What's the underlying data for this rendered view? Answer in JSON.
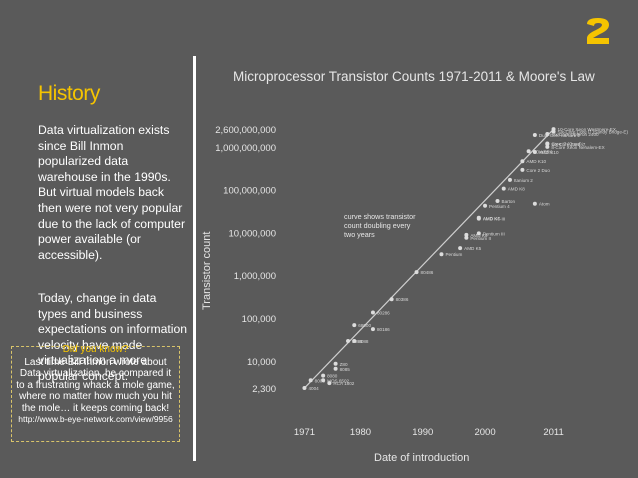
{
  "slide": {
    "title": "History",
    "paragraph_1": "Data virtualization exists since Bill Inmon popularized data warehouse in the 1990s. But virtual models back then were not very popular due to the lack of  computer power available (or accessible).",
    "paragraph_2": "Today, change in data types and business expectations on information velocity have made virtualization a more popular concept.",
    "callout": {
      "heading": "Did you know?",
      "body": "Last time Bill Inmon wrote about Data virtualization, he compared it to a frustrating whack a mole game, where no matter how much you hit the mole… it keeps coming back!",
      "link": "http://www.b-eye-network.com/view/9956"
    },
    "colors": {
      "background": "#5a5a5a",
      "accent": "#f5c400",
      "text": "#ffffff"
    },
    "logo_icon": "brand-logo-icon"
  },
  "chart_data": {
    "type": "scatter",
    "title": "Microprocessor Transistor Counts 1971-2011 & Moore's Law",
    "xlabel": "Date of introduction",
    "ylabel": "Transistor count",
    "xlim": [
      1969,
      2013
    ],
    "ylim": [
      1500,
      5000000000
    ],
    "y_scale": "log",
    "x_ticks": [
      1971,
      1980,
      1990,
      2000,
      2011
    ],
    "y_ticks": [
      {
        "value": 2300,
        "label": "2,300"
      },
      {
        "value": 10000,
        "label": "10,000"
      },
      {
        "value": 100000,
        "label": "100,000"
      },
      {
        "value": 1000000,
        "label": "1,000,000"
      },
      {
        "value": 10000000,
        "label": "10,000,000"
      },
      {
        "value": 100000000,
        "label": "100,000,000"
      },
      {
        "value": 1000000000,
        "label": "1,000,000,000"
      },
      {
        "value": 2600000000,
        "label": "2,600,000,000"
      }
    ],
    "annotation": "curve shows transistor count doubling every two years",
    "trend_line": {
      "x": [
        1971,
        2011
      ],
      "y": [
        2300,
        2600000000
      ]
    },
    "points": [
      {
        "x": 1971,
        "y": 2300,
        "label": "4004"
      },
      {
        "x": 1972,
        "y": 3500,
        "label": "8008"
      },
      {
        "x": 1974,
        "y": 4500,
        "label": "8080"
      },
      {
        "x": 1974,
        "y": 3500,
        "label": "MOS 6502"
      },
      {
        "x": 1975,
        "y": 3000,
        "label": "RCA 1802"
      },
      {
        "x": 1976,
        "y": 8500,
        "label": "Z80"
      },
      {
        "x": 1976,
        "y": 6500,
        "label": "8085"
      },
      {
        "x": 1978,
        "y": 29000,
        "label": "8086"
      },
      {
        "x": 1979,
        "y": 68000,
        "label": "68000"
      },
      {
        "x": 1979,
        "y": 29000,
        "label": "8088"
      },
      {
        "x": 1982,
        "y": 134000,
        "label": "80286"
      },
      {
        "x": 1982,
        "y": 55000,
        "label": "80186"
      },
      {
        "x": 1985,
        "y": 275000,
        "label": "80386"
      },
      {
        "x": 1989,
        "y": 1180000,
        "label": "80486"
      },
      {
        "x": 1993,
        "y": 3100000,
        "label": "Pentium"
      },
      {
        "x": 1996,
        "y": 4300000,
        "label": "AMD K5"
      },
      {
        "x": 1997,
        "y": 7500000,
        "label": "Pentium II"
      },
      {
        "x": 1997,
        "y": 8800000,
        "label": "AMD K6"
      },
      {
        "x": 1999,
        "y": 9500000,
        "label": "Pentium III"
      },
      {
        "x": 1999,
        "y": 21000000,
        "label": "AMD K6-III"
      },
      {
        "x": 1999,
        "y": 22000000,
        "label": "AMD K7"
      },
      {
        "x": 2000,
        "y": 42000000,
        "label": "Pentium 4"
      },
      {
        "x": 2002,
        "y": 54300000,
        "label": "Barton"
      },
      {
        "x": 2003,
        "y": 105900000,
        "label": "AMD K8"
      },
      {
        "x": 2004,
        "y": 169000000,
        "label": "Itanium 2"
      },
      {
        "x": 2006,
        "y": 291000000,
        "label": "Core 2 Duo"
      },
      {
        "x": 2008,
        "y": 47000000,
        "label": "Atom"
      },
      {
        "x": 2006,
        "y": 463000000,
        "label": "AMD K10"
      },
      {
        "x": 2007,
        "y": 789000000,
        "label": "POWER6"
      },
      {
        "x": 2008,
        "y": 758000000,
        "label": "AMD K10"
      },
      {
        "x": 2008,
        "y": 1900000000,
        "label": "Dual-Core Itanium 2"
      },
      {
        "x": 2010,
        "y": 2000000000,
        "label": "Six-Core Opteron 2400"
      },
      {
        "x": 2011,
        "y": 2600000000,
        "label": "10-Core Xeon Westmere-EX"
      },
      {
        "x": 2010,
        "y": 1170000000,
        "label": "Six-Core Core i7"
      },
      {
        "x": 2011,
        "y": 2270000000,
        "label": "Six-Core Core i7 (Sandy Bridge-E)"
      },
      {
        "x": 2010,
        "y": 1200000000,
        "label": "Core i7 (Quad)"
      },
      {
        "x": 2010,
        "y": 1000000000,
        "label": "8-Core Xeon Nehalem-EX"
      }
    ],
    "visible_point_labels": [
      "16-Core SPARC T3",
      "Six-Core Core i7",
      "Six-Core Xeon 7400",
      "10-Core Xeon Westmere-EX",
      "Dual-Core Itanium 2",
      "8-core POWER7",
      "Quad-core z196",
      "Quad-Core Itanium Tukwila",
      "8-Core Xeon Nehalem-EX",
      "AMD K10",
      "POWER6",
      "Itanium 2 with 9MB cache",
      "Six-Core Opteron 2400",
      "Core i7 (Quad)",
      "Core 2 Duo",
      "Cell",
      "Itanium 2",
      "AMD K8",
      "Barton",
      "Atom",
      "Pentium 4",
      "AMD K7",
      "AMD K6-III",
      "AMD K6",
      "Pentium III",
      "Pentium II",
      "AMD K5",
      "Pentium",
      "80486",
      "80386",
      "80286",
      "68000",
      "80186",
      "8086",
      "8088",
      "8085",
      "6800",
      "6809",
      "Z80",
      "8080",
      "MOS 6502",
      "8008",
      "RCA 1802",
      "4004"
    ]
  }
}
